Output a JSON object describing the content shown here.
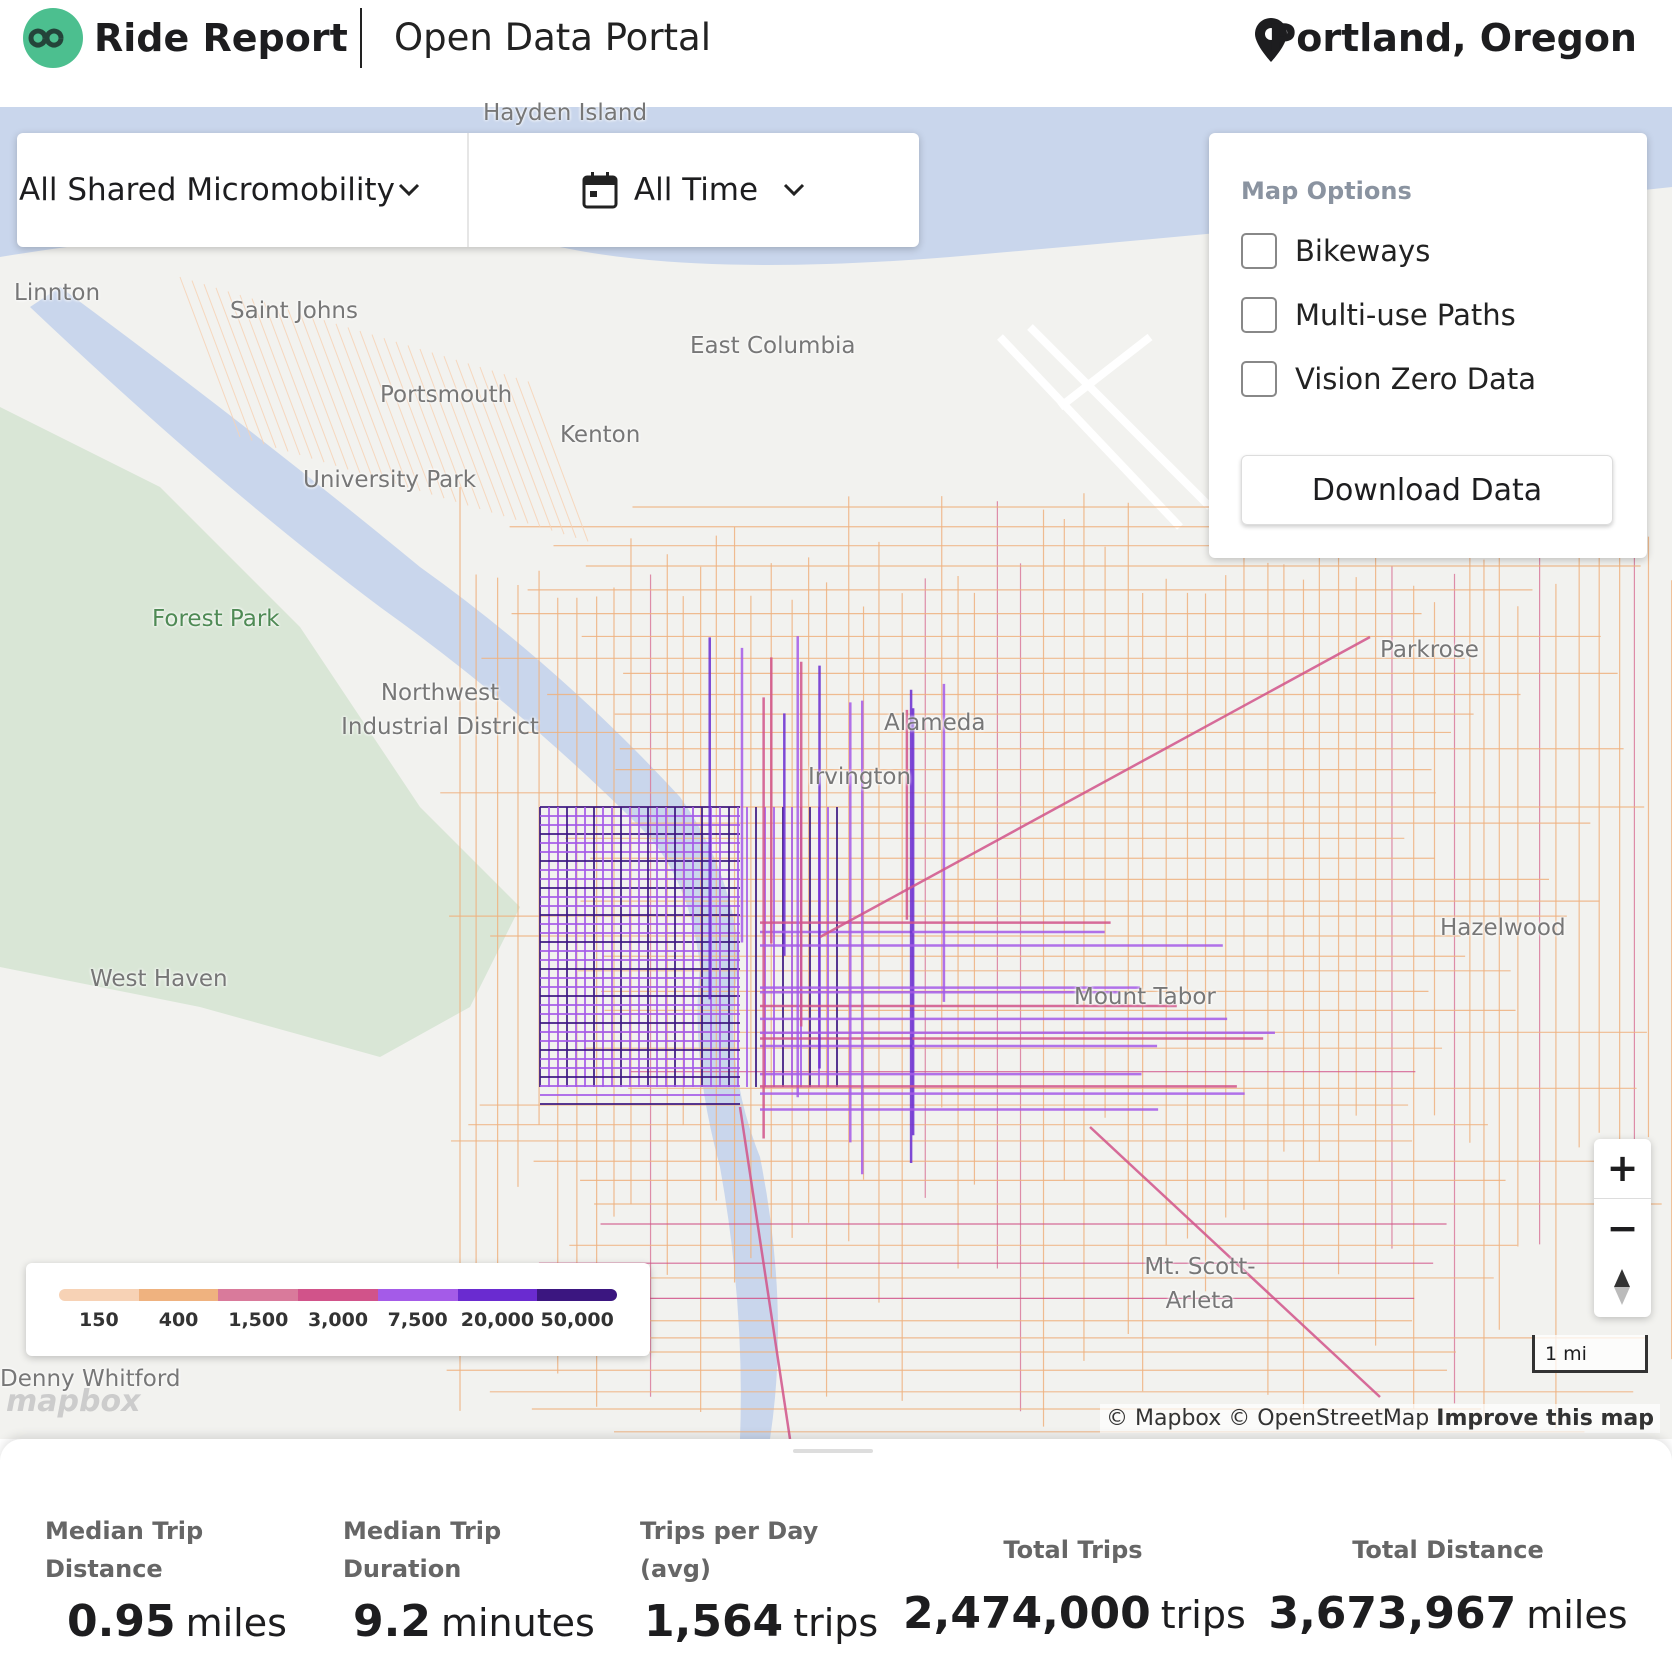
{
  "header": {
    "brand": "Ride Report",
    "portal": "Open Data Portal",
    "city": "Portland, Oregon"
  },
  "filters": {
    "mode": "All Shared Micromobility",
    "time": "All Time"
  },
  "map_options": {
    "title": "Map Options",
    "options": [
      "Bikeways",
      "Multi-use Paths",
      "Vision Zero Data"
    ],
    "download": "Download Data"
  },
  "legend": {
    "items": [
      {
        "label": "150",
        "color": "#f7d2b5"
      },
      {
        "label": "400",
        "color": "#efb27f"
      },
      {
        "label": "1,500",
        "color": "#d97a9b"
      },
      {
        "label": "3,000",
        "color": "#d1538a"
      },
      {
        "label": "7,500",
        "color": "#a45be8"
      },
      {
        "label": "20,000",
        "color": "#6a2bd0"
      },
      {
        "label": "50,000",
        "color": "#3b1680"
      }
    ]
  },
  "map_labels": [
    "Hayden Island",
    "Linnton",
    "Saint Johns",
    "East Columbia",
    "Portsmouth",
    "Kenton",
    "University Park",
    "Forest Park",
    "Northwest Industrial District",
    "Alameda",
    "Irvington",
    "Parkrose",
    "Hazelwood",
    "Mount Tabor",
    "West Haven",
    "Mt. Scott-Arleta",
    "Denny Whitford"
  ],
  "map_controls": {
    "scale": "1 mi",
    "attribution": "© Mapbox © OpenStreetMap",
    "improve": "Improve this map",
    "logo": "mapbox"
  },
  "stats": [
    {
      "label": "Median Trip Distance",
      "value": "0.95",
      "unit": "miles"
    },
    {
      "label": "Median Trip Duration",
      "value": "9.2",
      "unit": "minutes"
    },
    {
      "label": "Trips per Day (avg)",
      "value": "1,564",
      "unit": "trips"
    },
    {
      "label": "Total Trips",
      "value": "2,474,000",
      "unit": "trips"
    },
    {
      "label": "Total Distance",
      "value": "3,673,967",
      "unit": "miles"
    }
  ]
}
